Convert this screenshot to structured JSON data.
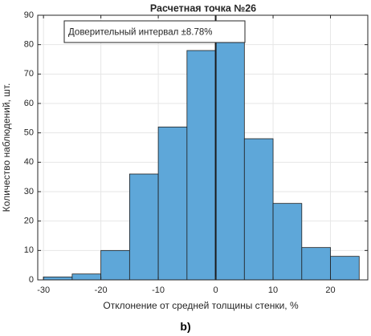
{
  "chart_data": {
    "type": "bar",
    "title": "Расчетная точка №26",
    "xlabel": "Отклонение от средней толщины стенки, %",
    "ylabel": "Количество наблюдений, шт.",
    "annotation": "Доверительный интервал ±8.78%",
    "bin_edges": [
      -30,
      -25,
      -20,
      -15,
      -10,
      -5,
      0,
      5,
      10,
      15,
      20,
      25
    ],
    "values": [
      1,
      2,
      10,
      36,
      52,
      78,
      88,
      48,
      26,
      11,
      8
    ],
    "xlim": [
      -31,
      26.5
    ],
    "ylim": [
      0,
      90
    ],
    "xticks": [
      -30,
      -20,
      -10,
      0,
      10,
      20
    ],
    "yticks": [
      0,
      10,
      20,
      30,
      40,
      50,
      60,
      70,
      80,
      90
    ],
    "vline_x": 0,
    "grid": true,
    "colors": {
      "bar_fill": "#5ea7d9",
      "bar_edge": "#1f1f1f",
      "grid": "#e6e6e6",
      "axis": "#262626",
      "vline": "#1a1a1a"
    }
  },
  "panel_label": "b)"
}
